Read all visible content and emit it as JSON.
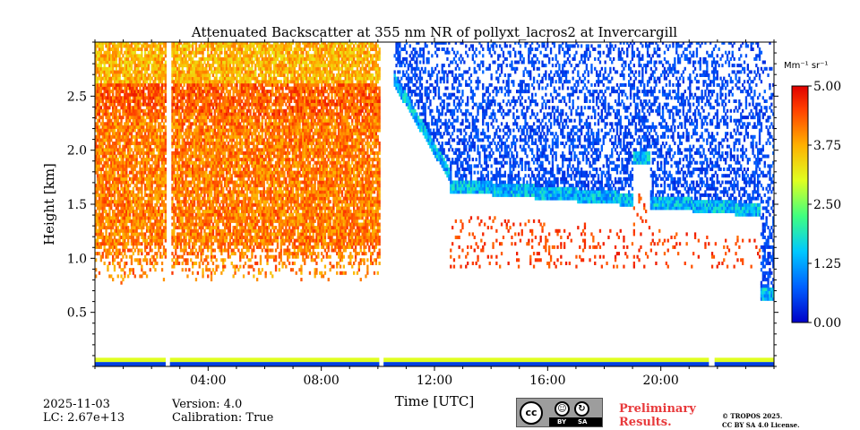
{
  "chart_data": {
    "type": "heatmap",
    "title": "Attenuated Backscatter at 355 nm NR of pollyxt_lacros2 at Invercargill",
    "xlabel": "Time [UTC]",
    "ylabel": "Height [km]",
    "xlim_hours": [
      0,
      24
    ],
    "ylim_km": [
      0,
      3.0
    ],
    "xticks": [
      {
        "hour": 4,
        "label": "04:00"
      },
      {
        "hour": 8,
        "label": "08:00"
      },
      {
        "hour": 12,
        "label": "12:00"
      },
      {
        "hour": 16,
        "label": "16:00"
      },
      {
        "hour": 20,
        "label": "20:00"
      }
    ],
    "yticks": [
      {
        "km": 0.5,
        "label": "0.5"
      },
      {
        "km": 1.0,
        "label": "1.0"
      },
      {
        "km": 1.5,
        "label": "1.5"
      },
      {
        "km": 2.0,
        "label": "2.0"
      },
      {
        "km": 2.5,
        "label": "2.5"
      }
    ],
    "colorbar": {
      "unit_label": "Mm⁻¹ sr⁻¹",
      "range": [
        0.0,
        5.0
      ],
      "ticks": [
        {
          "value": 0.0,
          "label": "0.00"
        },
        {
          "value": 1.25,
          "label": "1.25"
        },
        {
          "value": 2.5,
          "label": "2.50"
        },
        {
          "value": 3.75,
          "label": "3.75"
        },
        {
          "value": 5.0,
          "label": "5.00"
        }
      ],
      "colormap": "jet"
    },
    "data_gaps_hours": [
      [
        2.5,
        2.65
      ],
      [
        10.05,
        10.2
      ]
    ],
    "features": [
      {
        "name": "aerosol layer",
        "time_hours": [
          0,
          10
        ],
        "height_km": [
          0.7,
          3.0
        ],
        "value": 4.0
      },
      {
        "name": "cloud base",
        "time_hours": [
          10.5,
          24
        ],
        "height_km": [
          1.2,
          3.0
        ],
        "value": 0.6
      },
      {
        "name": "near-surface layer",
        "time_hours": [
          0,
          24
        ],
        "height_km": [
          0,
          0.08
        ],
        "value": 0.3
      }
    ]
  },
  "footer": {
    "date": "2025-11-03",
    "lc": "LC: 2.67e+13",
    "version": "Version: 4.0",
    "calibration": "Calibration: True",
    "cc_label": "cc",
    "cc_by": "BY",
    "cc_sa": "SA",
    "preliminary_line1": "Preliminary",
    "preliminary_line2": "Results.",
    "license_line1": "© TROPOS 2025.",
    "license_line2": "CC BY SA 4.0 License."
  }
}
